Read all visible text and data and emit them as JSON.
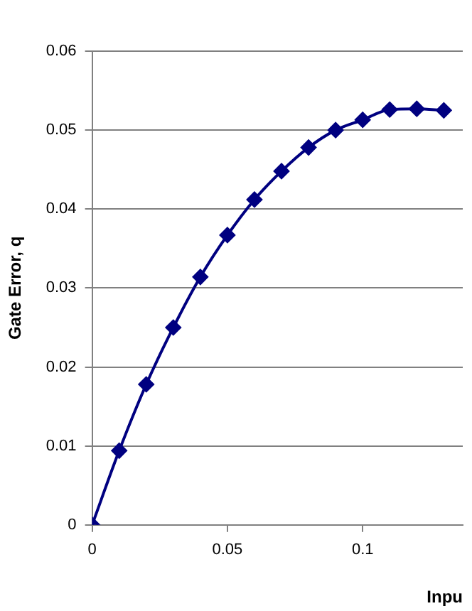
{
  "chart_data": {
    "type": "line",
    "xlabel": "Inpu",
    "ylabel": "Gate Error, q",
    "x": [
      0,
      0.01,
      0.02,
      0.03,
      0.04,
      0.05,
      0.06,
      0.07,
      0.08,
      0.09,
      0.1,
      0.11,
      0.12,
      0.13
    ],
    "series": [
      {
        "color": "#000080",
        "values": [
          0,
          0.0094,
          0.0178,
          0.025,
          0.0314,
          0.0367,
          0.0412,
          0.0448,
          0.0478,
          0.05,
          0.0513,
          0.0526,
          0.0527,
          0.0525
        ]
      }
    ],
    "xlim": [
      0,
      0.137
    ],
    "xticks": [
      0,
      0.05,
      0.1
    ],
    "ylim": [
      0,
      0.06
    ],
    "yticks": [
      0,
      0.01,
      0.02,
      0.03,
      0.04,
      0.05,
      0.06
    ],
    "grid": "y",
    "legend": false,
    "marker": "diamond",
    "line_style": "solid"
  }
}
